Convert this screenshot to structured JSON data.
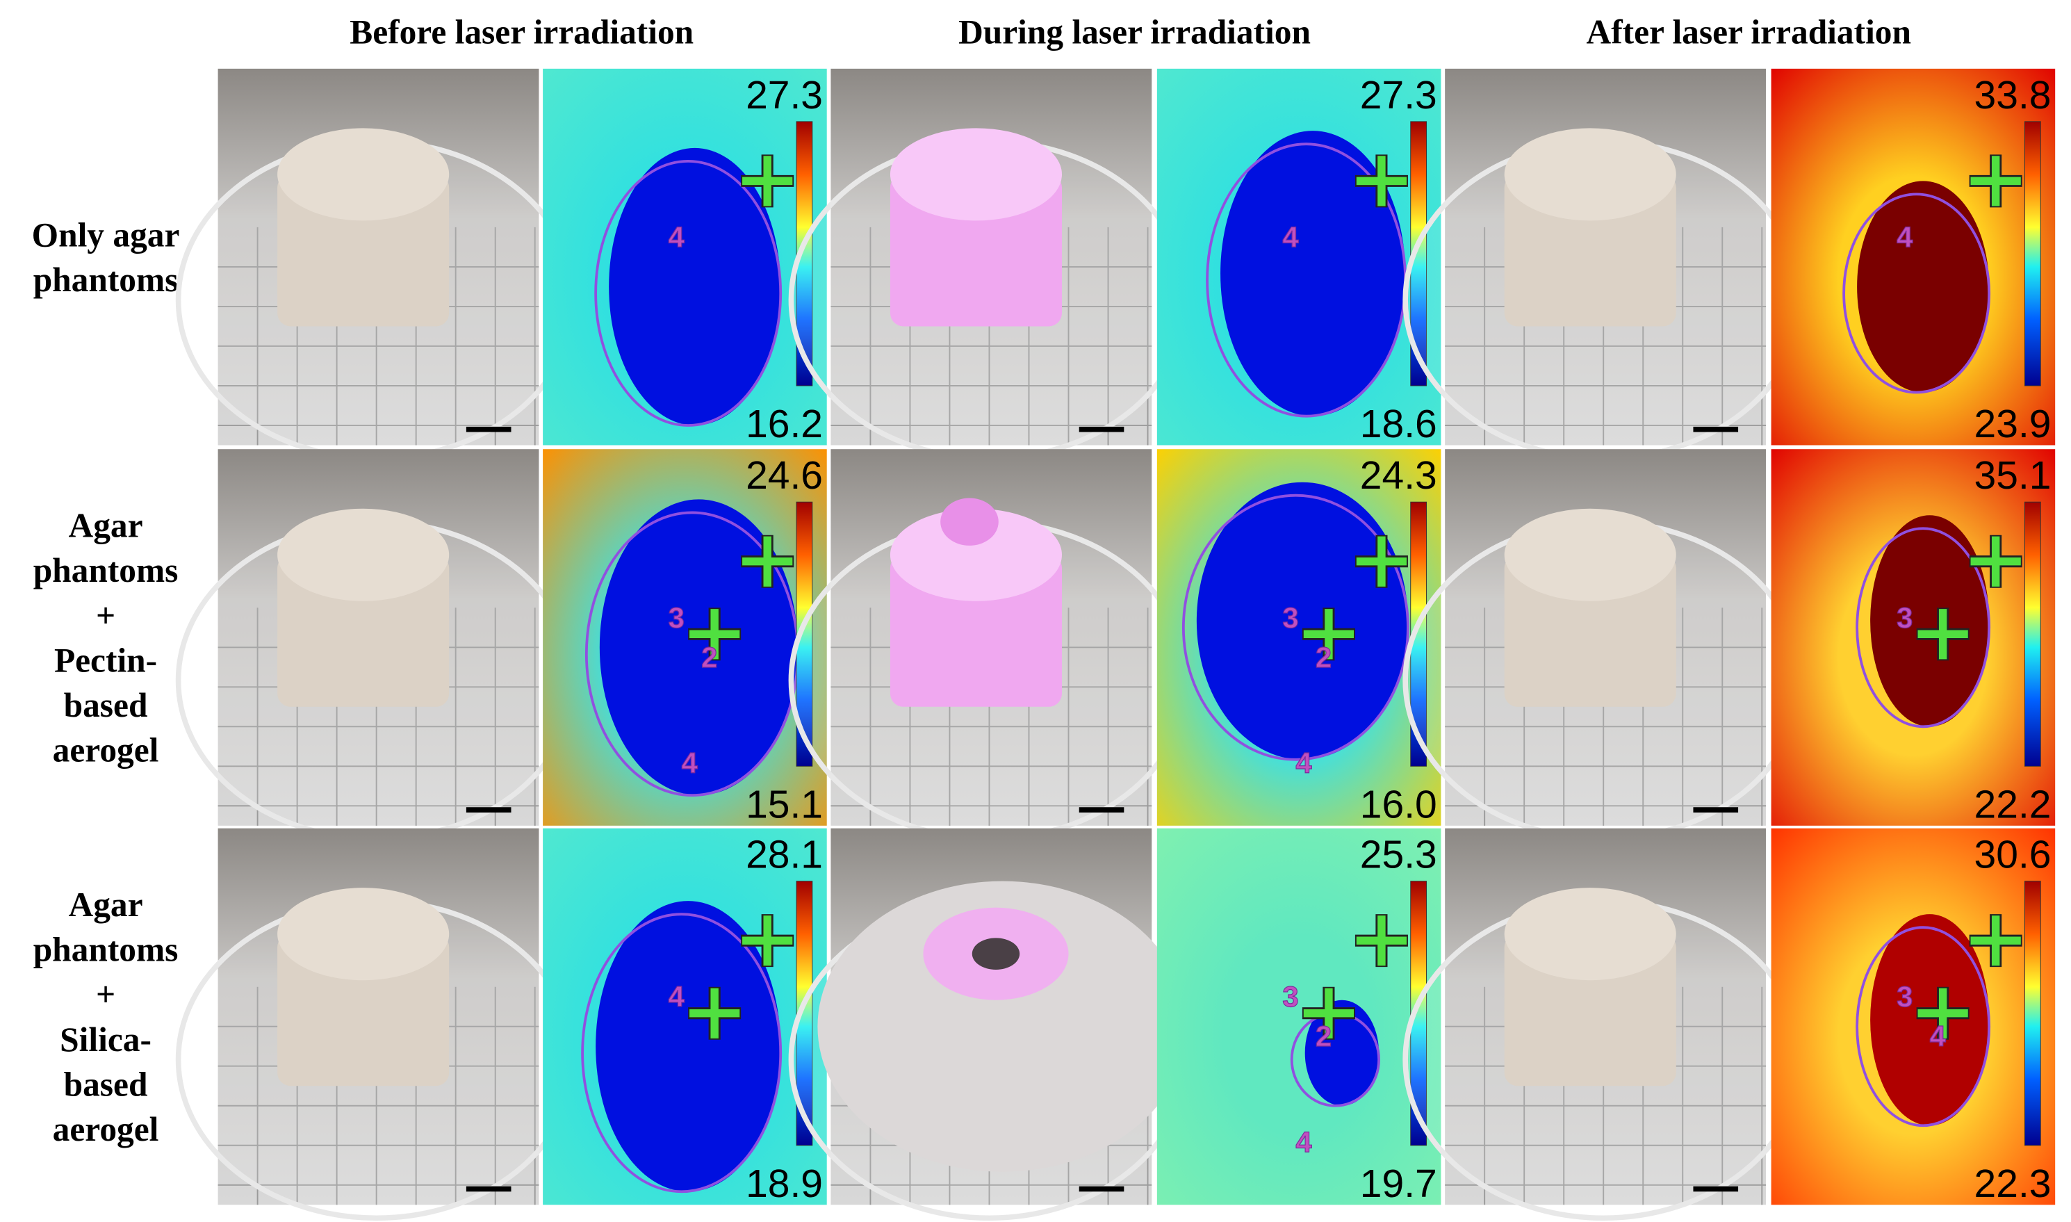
{
  "headers": [
    "Before laser irradiation",
    "During laser irradiation",
    "After laser irradiation"
  ],
  "rows": [
    {
      "label": [
        "Only agar",
        "phantoms"
      ],
      "thermal": [
        {
          "max": "27.3",
          "min": "16.2",
          "rois": [
            "4"
          ]
        },
        {
          "max": "27.3",
          "min": "18.6",
          "rois": [
            "4"
          ]
        },
        {
          "max": "33.8",
          "min": "23.9",
          "rois": [
            "4"
          ]
        }
      ]
    },
    {
      "label": [
        "Agar",
        "phantoms",
        "+",
        "Pectin-",
        "based",
        "aerogel"
      ],
      "thermal": [
        {
          "max": "24.6",
          "min": "15.1",
          "rois": [
            "3",
            "2",
            "4"
          ]
        },
        {
          "max": "24.3",
          "min": "16.0",
          "rois": [
            "3",
            "2",
            "4"
          ]
        },
        {
          "max": "35.1",
          "min": "22.2",
          "rois": [
            "3"
          ]
        }
      ]
    },
    {
      "label": [
        "Agar",
        "phantoms",
        "+",
        "Silica-",
        "based",
        "aerogel"
      ],
      "thermal": [
        {
          "max": "28.1",
          "min": "18.9",
          "rois": [
            "4"
          ]
        },
        {
          "max": "25.3",
          "min": "19.7",
          "rois": [
            "3",
            "2",
            "4"
          ]
        },
        {
          "max": "30.6",
          "min": "22.3",
          "rois": [
            "3",
            "4"
          ]
        }
      ]
    }
  ]
}
